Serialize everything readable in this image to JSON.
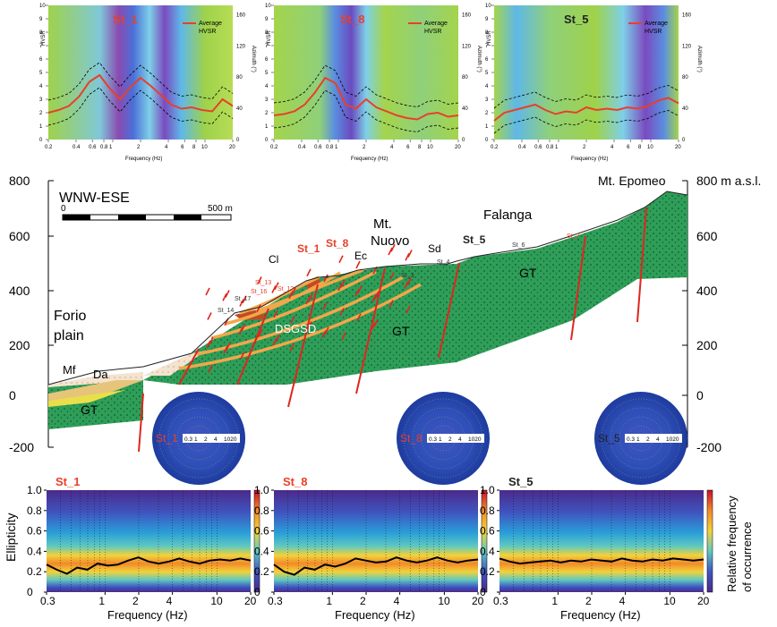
{
  "colors": {
    "gt_green": "#2e9e58",
    "fault_red": "#e0261e",
    "orange_band": "#f2a74a",
    "hvsr_red": "#e8402a",
    "colorbar_top": "#c8102e",
    "colorbar_bottom": "#4b2a8a"
  },
  "top_panels": [
    {
      "station": "St_1",
      "station_color": "#e8402a",
      "legend": {
        "line1": "Average",
        "line2": "HVSR"
      },
      "y_label": "HVSR",
      "y_ticks": [
        "0",
        "1",
        "2",
        "3",
        "4",
        "5",
        "6",
        "7",
        "8",
        "9",
        "10"
      ],
      "az_label": "Azimuth (°)",
      "az_ticks": [
        "0",
        "40",
        "80",
        "120",
        "160"
      ],
      "x_label": "Frequency (Hz)",
      "x_ticks": [
        "0.2",
        "0.4",
        "0.6",
        "0.8",
        "1",
        "2",
        "4",
        "6",
        "8",
        "10",
        "20"
      ],
      "avg_hvsr": [
        2.0,
        2.2,
        2.5,
        3.2,
        4.3,
        4.8,
        3.8,
        3.0,
        3.9,
        4.6,
        4.0,
        3.3,
        2.6,
        2.3,
        2.4,
        2.2,
        2.1,
        3.0,
        2.5
      ]
    },
    {
      "station": "St_8",
      "station_color": "#e8402a",
      "legend": {
        "line1": "Average",
        "line2": "HVSR"
      },
      "y_label": "HVSR",
      "y_ticks": [
        "0",
        "1",
        "2",
        "3",
        "4",
        "5",
        "6",
        "7",
        "8",
        "9",
        "10"
      ],
      "az_label": "Azimuth (°)",
      "az_ticks": [
        "0",
        "40",
        "80",
        "120",
        "160"
      ],
      "x_label": "Frequency (Hz)",
      "x_ticks": [
        "0.2",
        "0.4",
        "0.6",
        "0.8",
        "1",
        "2",
        "4",
        "6",
        "8",
        "10",
        "20"
      ],
      "avg_hvsr": [
        1.8,
        1.9,
        2.1,
        2.6,
        3.5,
        4.6,
        4.2,
        2.6,
        2.3,
        3.0,
        2.4,
        2.1,
        1.8,
        1.6,
        1.5,
        1.9,
        2.0,
        1.7,
        1.8
      ]
    },
    {
      "station": "St_5",
      "station_color": "#222222",
      "legend": {
        "line1": "Average",
        "line2": "HVSR"
      },
      "y_label": "HVSR",
      "y_ticks": [
        "0",
        "1",
        "2",
        "3",
        "4",
        "5",
        "6",
        "7",
        "8",
        "9",
        "10"
      ],
      "az_label": "Azimuth (°)",
      "az_ticks": [
        "0",
        "40",
        "80",
        "120",
        "160"
      ],
      "x_label": "Frequency (Hz)",
      "x_ticks": [
        "0.2",
        "0.4",
        "0.6",
        "0.8",
        "1",
        "2",
        "4",
        "6",
        "8",
        "10",
        "20"
      ],
      "avg_hvsr": [
        1.4,
        2.0,
        2.2,
        2.4,
        2.6,
        2.2,
        1.9,
        2.1,
        2.0,
        2.4,
        2.2,
        2.3,
        2.2,
        2.4,
        2.3,
        2.5,
        2.9,
        3.1,
        2.7
      ]
    }
  ],
  "section": {
    "title": "WNW-ESE",
    "scale": {
      "start": "0",
      "end": "500 m"
    },
    "left_axis_ticks": [
      "800",
      "600",
      "400",
      "200",
      "0",
      "-200"
    ],
    "right_axis_ticks": [
      "800 m a.s.l.",
      "600",
      "400",
      "200",
      "0",
      "-200"
    ],
    "labels": {
      "forio": "Forio",
      "plain": "plain",
      "mf": "Mf",
      "da": "Da",
      "gt_left": "GT",
      "gt_mid": "GT",
      "gt_right": "GT",
      "dsgsd": "DSGSD",
      "cl": "Cl",
      "ec": "Ec",
      "sd": "Sd",
      "mt_nuovo_1": "Mt.",
      "mt_nuovo_2": "Nuovo",
      "falanga": "Falanga",
      "mt_epomeo": "Mt. Epomeo"
    },
    "stations": {
      "st_1": "St_1",
      "st_8": "St_8",
      "st_5": "St_5",
      "st_13": "St_13",
      "st_16": "St_16",
      "st_12": "St_12",
      "st_17": "St_17",
      "st_14": "St_14",
      "st_3": "St_3",
      "st_4": "St_4",
      "st_6": "St_6",
      "st_7": "St_7"
    }
  },
  "polar_plots": [
    {
      "station": "St_1",
      "station_color": "#e8402a",
      "rings": [
        "0.3",
        "1",
        "2",
        "4",
        "1020"
      ]
    },
    {
      "station": "St_8",
      "station_color": "#e8402a",
      "rings": [
        "0.3",
        "1",
        "2",
        "4",
        "1020"
      ]
    },
    {
      "station": "St_5",
      "station_color": "#222222",
      "rings": [
        "0.3",
        "1",
        "2",
        "4",
        "1020"
      ]
    }
  ],
  "ellipticity_panels": [
    {
      "station": "St_1",
      "station_color": "#e8402a",
      "y_ticks": [
        "0",
        "0.2",
        "0.4",
        "0.6",
        "0.8",
        "1.0"
      ],
      "x_ticks": [
        "0.3",
        "1",
        "2",
        "4",
        "10",
        "20"
      ],
      "x_label": "Frequency (Hz)",
      "mean_curve": [
        0.27,
        0.22,
        0.18,
        0.24,
        0.22,
        0.28,
        0.26,
        0.27,
        0.31,
        0.34,
        0.3,
        0.28,
        0.3,
        0.33,
        0.3,
        0.28,
        0.31,
        0.32,
        0.31,
        0.33,
        0.31
      ]
    },
    {
      "station": "St_8",
      "station_color": "#e8402a",
      "y_ticks": [
        "0",
        "0.2",
        "0.4",
        "0.6",
        "0.8",
        "1.0"
      ],
      "x_ticks": [
        "0.3",
        "1",
        "2",
        "4",
        "10",
        "20"
      ],
      "x_label": "Frequency (Hz)",
      "mean_curve": [
        0.27,
        0.2,
        0.17,
        0.24,
        0.22,
        0.27,
        0.25,
        0.28,
        0.33,
        0.31,
        0.29,
        0.3,
        0.34,
        0.31,
        0.29,
        0.31,
        0.34,
        0.31,
        0.29,
        0.31,
        0.32
      ]
    },
    {
      "station": "St_5",
      "station_color": "#222222",
      "y_ticks": [
        "0",
        "0.2",
        "0.4",
        "0.6",
        "0.8",
        "1.0"
      ],
      "x_ticks": [
        "0.3",
        "1",
        "2",
        "4",
        "10",
        "20"
      ],
      "x_label": "Frequency (Hz)",
      "mean_curve": [
        0.33,
        0.3,
        0.28,
        0.29,
        0.3,
        0.31,
        0.29,
        0.31,
        0.3,
        0.32,
        0.31,
        0.3,
        0.33,
        0.31,
        0.3,
        0.32,
        0.31,
        0.33,
        0.32,
        0.31,
        0.32
      ]
    }
  ],
  "ellipticity_y_label": "Ellipticity",
  "colorbar_label_1": "Relative frequency",
  "colorbar_label_2": "of occurrence"
}
